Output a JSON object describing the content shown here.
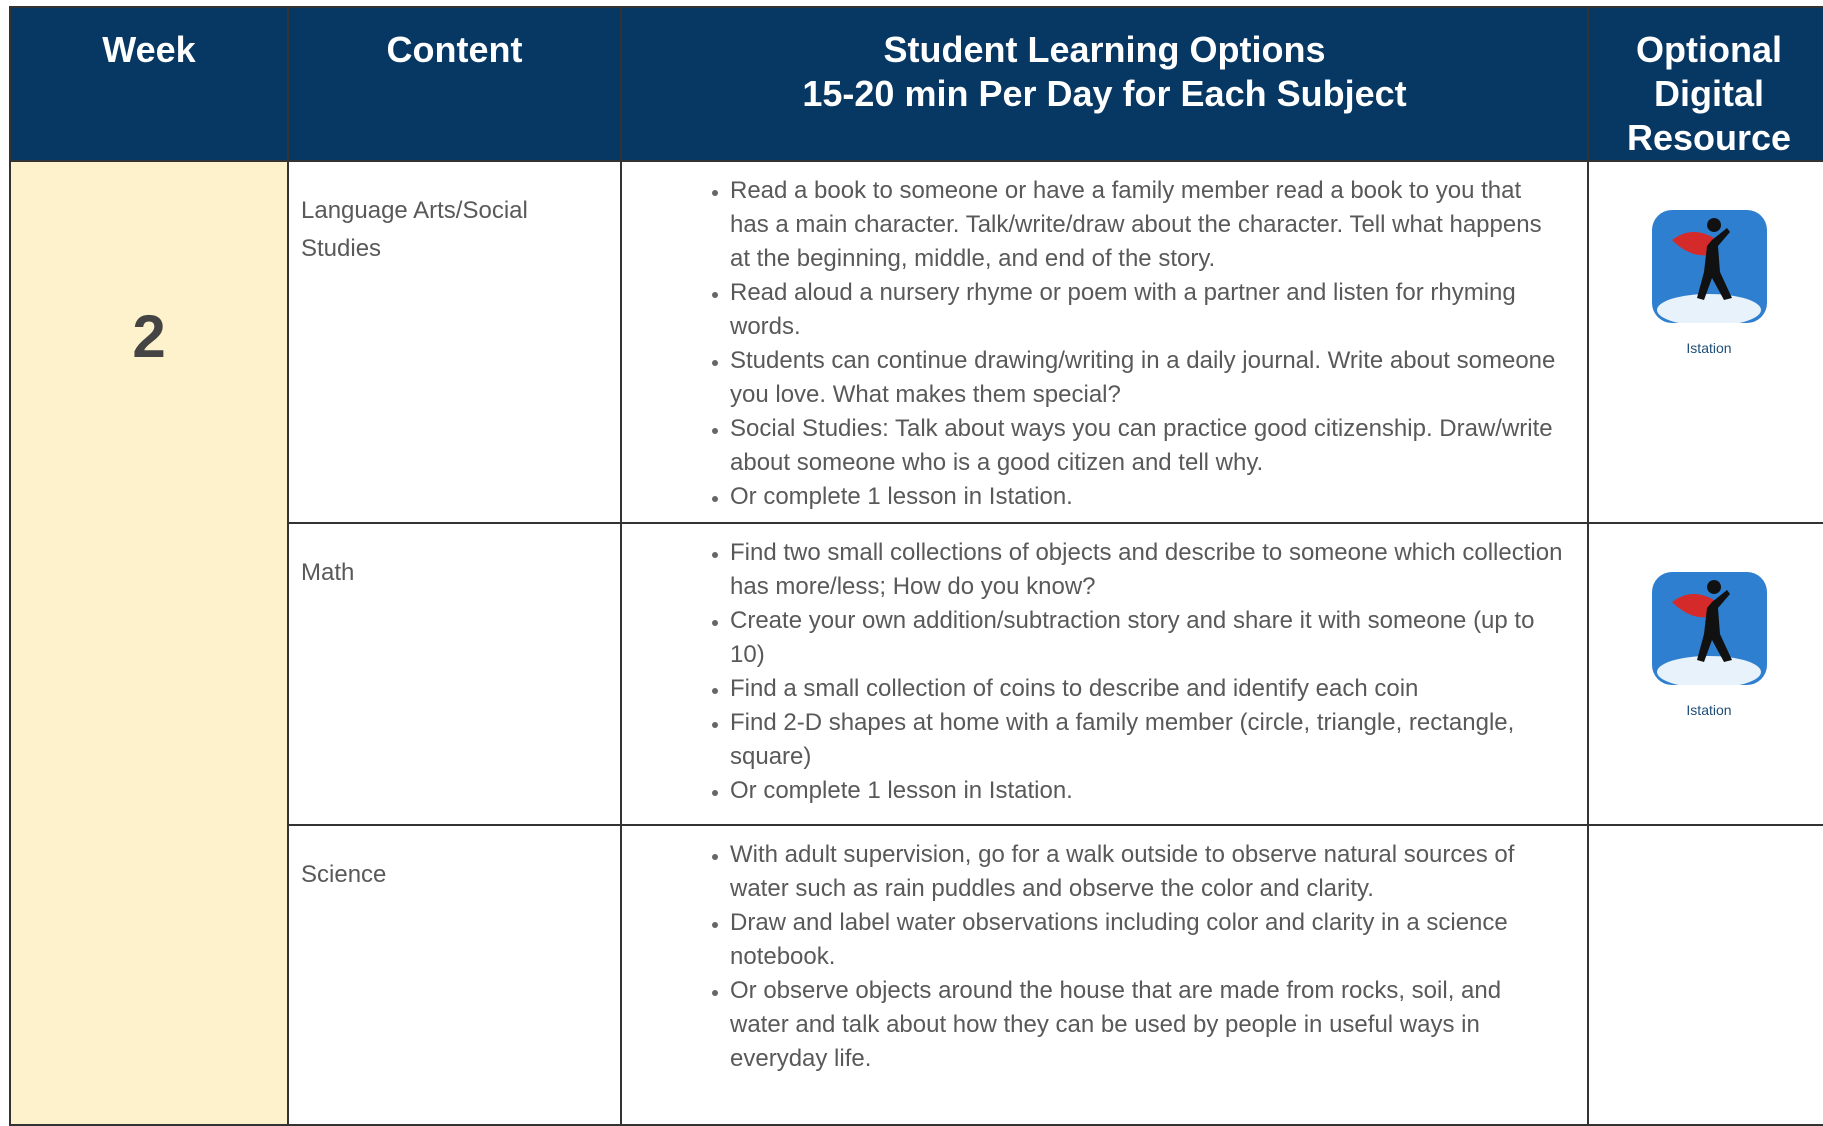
{
  "header": {
    "week": "Week",
    "content": "Content",
    "options_line1": "Student Learning Options",
    "options_line2": "15-20 min Per Day for Each Subject",
    "resource": "Optional Digital Resource"
  },
  "week": "2",
  "rows": [
    {
      "subject": "Language Arts/Social Studies",
      "items": [
        "Read a book to someone or have a family member read a book to you that has a main character. Talk/write/draw about the character.  Tell what happens at the beginning, middle, and end of the story.",
        "Read aloud a nursery rhyme or poem with a partner and listen for rhyming words.",
        "Students can continue drawing/writing in a daily journal. Write about someone you love. What makes them special?",
        "Social Studies: Talk about ways you can practice good citizenship. Draw/write about someone who is a good citizen and tell why.",
        "Or complete 1 lesson in Istation."
      ],
      "resource": "Istation"
    },
    {
      "subject": "Math",
      "items": [
        "Find two small collections of objects and describe to someone which collection has more/less; How do you know?",
        "Create your own addition/subtraction story and share it with someone (up to 10)",
        "Find a small collection of coins to describe and identify each coin",
        "Find 2-D shapes at home with a family member (circle, triangle, rectangle, square)",
        "Or complete 1 lesson in Istation."
      ],
      "resource": "Istation"
    },
    {
      "subject": "Science",
      "items": [
        "With adult supervision, go for a walk outside to observe natural sources of water such as rain puddles and observe the color and clarity.",
        "Draw and label water observations including color and clarity in a science notebook.",
        "Or observe objects around the house that are made from rocks, soil, and water and talk about how they can be used by people in useful ways in everyday life."
      ]
    }
  ]
}
